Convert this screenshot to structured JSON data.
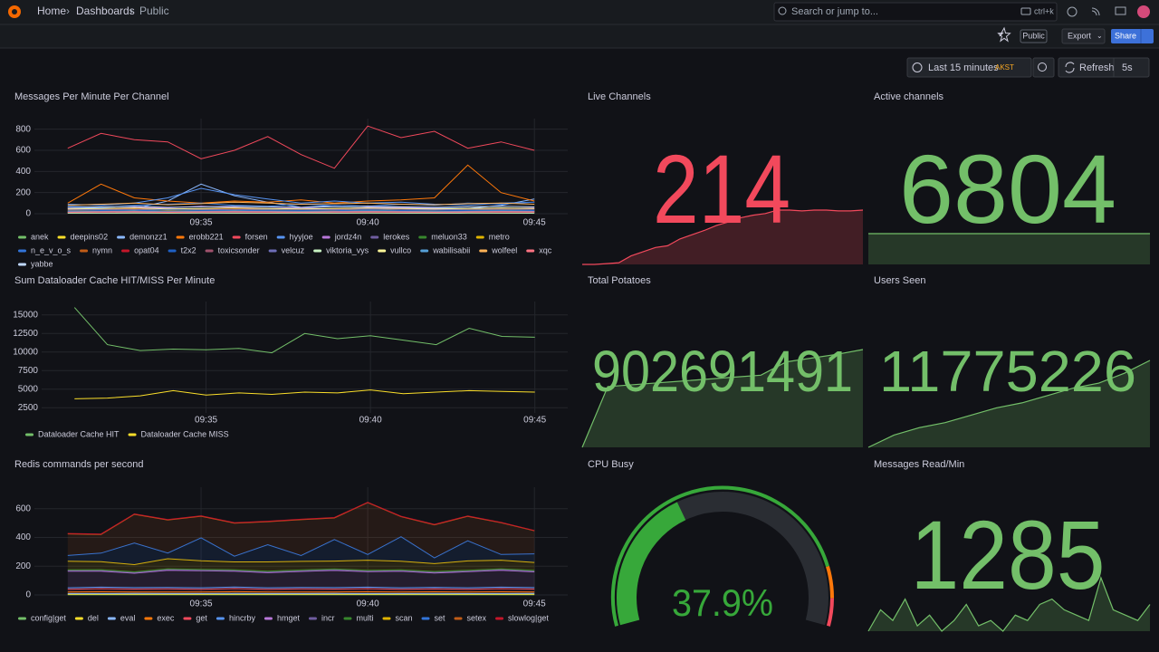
{
  "nav": {
    "breadcrumbs": [
      "Home",
      "Dashboards",
      "Public"
    ],
    "search": "Search or jump to...",
    "shortcut": "ctrl+k"
  },
  "toolbar": {
    "tag": "Public",
    "export": "Export",
    "share": "Share",
    "time_range": "Last 15 minutes",
    "timezone": "AKST",
    "refresh": "Refresh",
    "interval": "5s"
  },
  "panels": [
    {
      "title": "Messages Per Minute Per Channel",
      "chart": {
        "type": "line",
        "x": [
          "09:31",
          "09:32",
          "09:33",
          "09:34",
          "09:35",
          "09:36",
          "09:37",
          "09:38",
          "09:39",
          "09:40",
          "09:41",
          "09:42",
          "09:43",
          "09:44",
          "09:45"
        ],
        "xlim": [
          "09:30",
          "09:46"
        ],
        "xticks": [
          "09:35",
          "09:40",
          "09:45"
        ],
        "ylim": [
          0,
          900
        ],
        "yticks": [
          0,
          200,
          400,
          600,
          800
        ],
        "series": [
          {
            "name": "anek",
            "color": "#73bf69",
            "values": [
              20,
              25,
              30,
              22,
              28,
              35,
              30,
              25,
              20,
              30,
              25,
              22,
              28,
              30,
              25
            ]
          },
          {
            "name": "deepins02",
            "color": "#fade2a",
            "values": [
              10,
              12,
              15,
              10,
              12,
              14,
              10,
              12,
              10,
              15,
              12,
              10,
              12,
              14,
              12
            ]
          },
          {
            "name": "demonzz1",
            "color": "#8ab8ff",
            "values": [
              60,
              55,
              50,
              120,
              280,
              170,
              110,
              60,
              80,
              70,
              60,
              55,
              50,
              80,
              140
            ]
          },
          {
            "name": "erobb221",
            "color": "#ff780a",
            "values": [
              100,
              280,
              150,
              120,
              100,
              120,
              110,
              130,
              100,
              120,
              130,
              150,
              460,
              200,
              120
            ]
          },
          {
            "name": "forsen",
            "color": "#f2495c",
            "values": [
              620,
              760,
              700,
              680,
              520,
              600,
              730,
              560,
              430,
              830,
              720,
              780,
              620,
              680,
              600
            ]
          },
          {
            "name": "hyyjoe",
            "color": "#5794f2",
            "values": [
              90,
              80,
              100,
              150,
              240,
              180,
              140,
              100,
              120,
              100,
              110,
              90,
              80,
              100,
              110
            ]
          },
          {
            "name": "jordz4n",
            "color": "#b877d9",
            "values": [
              50,
              45,
              60,
              55,
              70,
              60,
              50,
              55,
              45,
              60,
              55,
              50,
              45,
              50,
              55
            ]
          },
          {
            "name": "lerokes",
            "color": "#705da0",
            "values": [
              15,
              20,
              18,
              22,
              20,
              18,
              25,
              20,
              18,
              22,
              20,
              18,
              20,
              22,
              20
            ]
          },
          {
            "name": "meluon33",
            "color": "#37872d",
            "values": [
              5,
              6,
              5,
              7,
              6,
              5,
              6,
              5,
              6,
              7,
              5,
              6,
              5,
              6,
              5
            ]
          },
          {
            "name": "metro",
            "color": "#e0b400",
            "values": [
              30,
              35,
              40,
              30,
              35,
              40,
              35,
              30,
              35,
              40,
              30,
              35,
              40,
              35,
              30
            ]
          },
          {
            "name": "n_e_v_o_s",
            "color": "#3274d9",
            "values": [
              70,
              60,
              80,
              90,
              100,
              80,
              70,
              90,
              80,
              70,
              90,
              80,
              100,
              90,
              110
            ]
          },
          {
            "name": "nymn",
            "color": "#c15c17",
            "values": [
              40,
              45,
              50,
              40,
              45,
              50,
              45,
              40,
              45,
              50,
              45,
              40,
              45,
              50,
              45
            ]
          },
          {
            "name": "opat04",
            "color": "#c4162a",
            "values": [
              8,
              10,
              9,
              12,
              10,
              9,
              11,
              10,
              9,
              12,
              10,
              9,
              10,
              11,
              10
            ]
          },
          {
            "name": "t2x2",
            "color": "#1f60c4",
            "values": [
              25,
              30,
              28,
              35,
              30,
              28,
              32,
              30,
              28,
              35,
              30,
              28,
              30,
              32,
              30
            ]
          },
          {
            "name": "toxicsonder",
            "color": "#a0526d",
            "values": [
              12,
              15,
              14,
              18,
              15,
              14,
              16,
              15,
              14,
              18,
              15,
              14,
              15,
              16,
              15
            ]
          },
          {
            "name": "velcuz",
            "color": "#6e6eb8",
            "values": [
              35,
              40,
              38,
              45,
              40,
              38,
              42,
              40,
              38,
              45,
              40,
              38,
              40,
              42,
              40
            ]
          },
          {
            "name": "viktoria_vys",
            "color": "#c8f2c2",
            "values": [
              5,
              5,
              6,
              5,
              6,
              5,
              5,
              6,
              5,
              6,
              5,
              5,
              6,
              5,
              5
            ]
          },
          {
            "name": "vullco",
            "color": "#fff899",
            "values": [
              45,
              50,
              55,
              45,
              50,
              55,
              50,
              45,
              50,
              55,
              50,
              45,
              50,
              55,
              50
            ]
          },
          {
            "name": "wabilisabii",
            "color": "#56a0d8",
            "values": [
              20,
              22,
              25,
              20,
              22,
              25,
              22,
              20,
              22,
              25,
              22,
              20,
              22,
              25,
              22
            ]
          },
          {
            "name": "wolfeel",
            "color": "#ffb357",
            "values": [
              80,
              90,
              100,
              85,
              95,
              110,
              100,
              90,
              95,
              100,
              90,
              85,
              95,
              100,
              90
            ]
          },
          {
            "name": "xqc",
            "color": "#ff7383",
            "values": [
              15,
              18,
              20,
              15,
              18,
              20,
              18,
              15,
              18,
              20,
              18,
              15,
              18,
              20,
              18
            ]
          },
          {
            "name": "yabbe",
            "color": "#c0d8ff",
            "values": [
              60,
              65,
              70,
              60,
              65,
              70,
              65,
              60,
              65,
              70,
              65,
              60,
              65,
              70,
              65
            ]
          }
        ]
      }
    },
    {
      "title": "Sum Dataloader Cache HIT/MISS Per Minute",
      "chart": {
        "type": "line",
        "x": [
          "09:31",
          "09:32",
          "09:33",
          "09:34",
          "09:35",
          "09:36",
          "09:37",
          "09:38",
          "09:39",
          "09:40",
          "09:41",
          "09:42",
          "09:43",
          "09:44",
          "09:45"
        ],
        "xlim": [
          "09:30",
          "09:46"
        ],
        "xticks": [
          "09:35",
          "09:40",
          "09:45"
        ],
        "ylim": [
          1800,
          16800
        ],
        "yticks": [
          2500,
          5000,
          7500,
          10000,
          12500,
          15000
        ],
        "series": [
          {
            "name": "Dataloader Cache HIT",
            "color": "#73bf69",
            "values": [
              16000,
              11000,
              10200,
              10400,
              10300,
              10500,
              9900,
              12500,
              11800,
              12200,
              11600,
              11000,
              13200,
              12100,
              12000
            ]
          },
          {
            "name": "Dataloader Cache MISS",
            "color": "#fade2a",
            "values": [
              3700,
              3800,
              4100,
              4800,
              4200,
              4500,
              4300,
              4600,
              4500,
              4900,
              4400,
              4600,
              4800,
              4700,
              4600
            ]
          }
        ]
      }
    },
    {
      "title": "Redis commands per second",
      "chart": {
        "type": "stacked_area",
        "x": [
          "09:31",
          "09:32",
          "09:33",
          "09:34",
          "09:35",
          "09:36",
          "09:37",
          "09:38",
          "09:39",
          "09:40",
          "09:41",
          "09:42",
          "09:43",
          "09:44",
          "09:45"
        ],
        "xlim": [
          "09:30",
          "09:46"
        ],
        "xticks": [
          "09:35",
          "09:40",
          "09:45"
        ],
        "ylim": [
          0,
          750
        ],
        "yticks": [
          0,
          200,
          400,
          600
        ],
        "series": [
          {
            "name": "config|get",
            "color": "#73bf69",
            "values": [
              2,
              2,
              2,
              2,
              2,
              2,
              2,
              2,
              2,
              2,
              2,
              2,
              2,
              2,
              2
            ]
          },
          {
            "name": "del",
            "color": "#fade2a",
            "values": [
              3,
              3,
              3,
              3,
              3,
              3,
              3,
              3,
              3,
              3,
              3,
              3,
              3,
              3,
              3
            ]
          },
          {
            "name": "eval",
            "color": "#8ab8ff",
            "values": [
              5,
              5,
              6,
              5,
              5,
              6,
              5,
              5,
              6,
              5,
              5,
              6,
              5,
              5,
              6
            ]
          },
          {
            "name": "exec",
            "color": "#ff780a",
            "values": [
              10,
              12,
              10,
              11,
              10,
              12,
              10,
              11,
              10,
              12,
              10,
              11,
              10,
              12,
              10
            ]
          },
          {
            "name": "get",
            "color": "#f2495c",
            "values": [
              20,
              22,
              20,
              21,
              20,
              22,
              20,
              21,
              20,
              22,
              20,
              21,
              20,
              22,
              20
            ]
          },
          {
            "name": "hincrby",
            "color": "#5794f2",
            "values": [
              10,
              10,
              10,
              10,
              10,
              10,
              10,
              10,
              10,
              10,
              10,
              10,
              10,
              10,
              10
            ]
          },
          {
            "name": "hmget",
            "color": "#b877d9",
            "values": [
              115,
              112,
              100,
              120,
              118,
              110,
              105,
              112,
              120,
              108,
              115,
              100,
              112,
              118,
              110
            ]
          },
          {
            "name": "incr",
            "color": "#705da0",
            "values": [
              5,
              5,
              5,
              5,
              5,
              5,
              5,
              5,
              5,
              5,
              5,
              5,
              5,
              5,
              5
            ]
          },
          {
            "name": "multi",
            "color": "#37872d",
            "values": [
              5,
              5,
              5,
              5,
              5,
              5,
              5,
              5,
              5,
              5,
              5,
              5,
              5,
              5,
              5
            ]
          },
          {
            "name": "scan",
            "color": "#e0b400",
            "values": [
              60,
              55,
              50,
              70,
              60,
              55,
              65,
              60,
              55,
              70,
              60,
              55,
              65,
              60,
              55
            ]
          },
          {
            "name": "set",
            "color": "#3274d9",
            "values": [
              40,
              60,
              150,
              40,
              160,
              40,
              120,
              40,
              150,
              40,
              170,
              40,
              140,
              40,
              60
            ]
          },
          {
            "name": "setex",
            "color": "#c15c17",
            "values": [
              150,
              130,
              200,
              230,
              150,
              230,
              160,
              250,
              150,
              360,
              140,
              230,
              170,
              220,
              160
            ]
          },
          {
            "name": "slowlog|get",
            "color": "#c4162a",
            "values": [
              3,
              3,
              3,
              3,
              3,
              3,
              3,
              3,
              3,
              3,
              3,
              3,
              3,
              3,
              3
            ]
          }
        ]
      }
    },
    {
      "title": "Live Channels",
      "type": "stat",
      "value": 214,
      "color": "#f2495c",
      "sparkline": [
        150,
        150,
        151,
        152,
        160,
        165,
        170,
        172,
        180,
        185,
        190,
        196,
        200,
        205,
        208,
        210,
        214,
        214,
        213,
        214,
        214,
        213,
        213,
        214
      ]
    },
    {
      "title": "Active channels",
      "type": "stat",
      "value": 6804,
      "color": "#73bf69",
      "sparkline": [
        6804,
        6804,
        6804,
        6804,
        6804,
        6804,
        6804,
        6804,
        6804,
        6804,
        6804,
        6804
      ]
    },
    {
      "title": "Total Potatoes",
      "type": "stat",
      "value": 902691491,
      "color": "#73bf69",
      "sparkline": [
        902640000,
        902672000,
        902673000,
        902674000,
        902675000,
        902676000,
        902677000,
        902678000,
        902685000,
        902687000,
        902689000,
        902691491
      ]
    },
    {
      "title": "Users Seen",
      "type": "stat",
      "value": 11775226,
      "color": "#73bf69",
      "sparkline": [
        11740000,
        11745000,
        11748000,
        11750000,
        11753000,
        11756000,
        11758000,
        11761000,
        11764000,
        11766000,
        11770000,
        11775226
      ]
    },
    {
      "title": "CPU Busy",
      "type": "gauge",
      "value": 37.9,
      "value_label": "37.9%",
      "range": [
        0,
        100
      ],
      "color": "#37a83a"
    },
    {
      "title": "Messages Read/Min",
      "type": "stat",
      "value": 1285,
      "color": "#73bf69",
      "sparkline": [
        900,
        1100,
        1000,
        1200,
        950,
        1050,
        900,
        1000,
        1150,
        950,
        1000,
        900,
        1050,
        1000,
        1150,
        1200,
        1100,
        1050,
        1000,
        1400,
        1100,
        1050,
        1000,
        1150
      ]
    }
  ]
}
